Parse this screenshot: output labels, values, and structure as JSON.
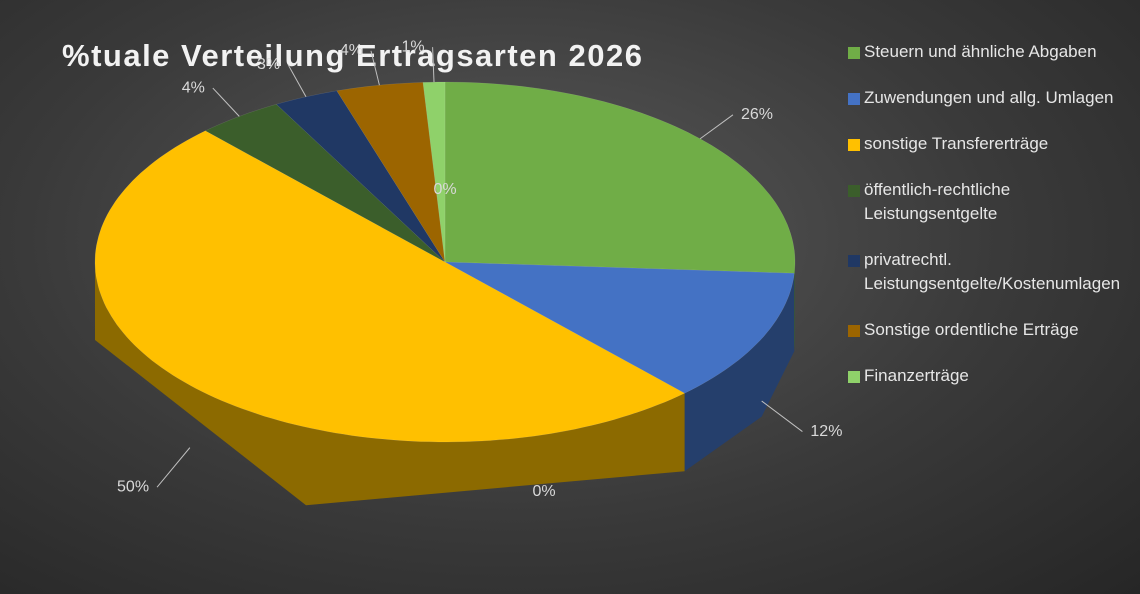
{
  "chart_data": {
    "type": "pie",
    "title": "%tuale Verteilung Ertragsarten 2026",
    "categories": [
      "Steuern und ähnliche Abgaben",
      "Zuwendungen und allg. Umlagen",
      "sonstige Transfererträge",
      "öffentlich-rechtliche Leistungsentgelte",
      "privatrechtl. Leistungsentgelte/Kostenumlagen",
      "Sonstige ordentliche Erträge",
      "Finanzerträge",
      null,
      null
    ],
    "values": [
      26,
      12,
      50,
      4,
      3,
      4,
      1,
      0,
      0
    ],
    "value_labels": [
      "26%",
      "12%",
      "50%",
      "4%",
      "3%",
      "4%",
      "1%",
      "0%",
      "0%"
    ],
    "colors": [
      "#70ad47",
      "#4472c4",
      "#ffc000",
      "#3b5e2b",
      "#203864",
      "#9c6500",
      "#8fd16a",
      null,
      null
    ],
    "legend": "right",
    "three_d": true
  }
}
